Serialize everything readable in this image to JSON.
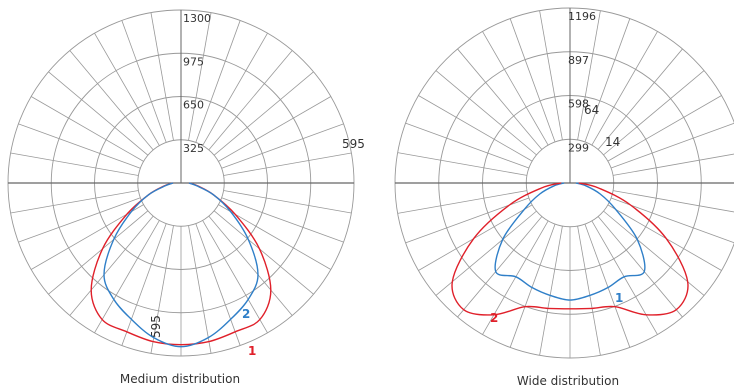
{
  "chart_data": [
    {
      "type": "polar",
      "title": "Medium distribution",
      "radial_ticks": [
        325,
        650,
        975,
        1300
      ],
      "rmax": 1300,
      "radial_ticks_spokes": 36,
      "annotations": [
        "595",
        "595"
      ],
      "series": [
        {
          "name": "1",
          "color": "#e0202a",
          "gamma": [
            0,
            10,
            20,
            30,
            40,
            50,
            60,
            70,
            80,
            90
          ],
          "values": [
            1215,
            1210,
            1190,
            1185,
            1050,
            770,
            470,
            260,
            130,
            60
          ]
        },
        {
          "name": "2",
          "color": "#2f7fc8",
          "gamma": [
            0,
            10,
            20,
            30,
            40,
            50,
            60,
            70,
            80,
            90
          ],
          "values": [
            1230,
            1180,
            1090,
            1010,
            900,
            660,
            430,
            260,
            120,
            60
          ]
        }
      ]
    },
    {
      "type": "polar",
      "title": "Wide distribution",
      "radial_ticks": [
        299,
        598,
        897,
        1196
      ],
      "rmax": 1196,
      "radial_ticks_spokes": 36,
      "annotations": [
        "64",
        "14"
      ],
      "series": [
        {
          "name": "1",
          "color": "#2f7fc8",
          "gamma": [
            0,
            10,
            20,
            30,
            40,
            50,
            60,
            70,
            80,
            90
          ],
          "values": [
            800,
            780,
            760,
            740,
            790,
            600,
            360,
            220,
            110,
            40
          ]
        },
        {
          "name": "2",
          "color": "#e0202a",
          "gamma": [
            0,
            10,
            20,
            30,
            40,
            50,
            60,
            70,
            80,
            90
          ],
          "values": [
            860,
            870,
            900,
            1040,
            1130,
            1050,
            760,
            440,
            200,
            60
          ]
        }
      ]
    }
  ],
  "colors": {
    "grid": "#999999",
    "axis": "#666666",
    "label": "#333333"
  }
}
